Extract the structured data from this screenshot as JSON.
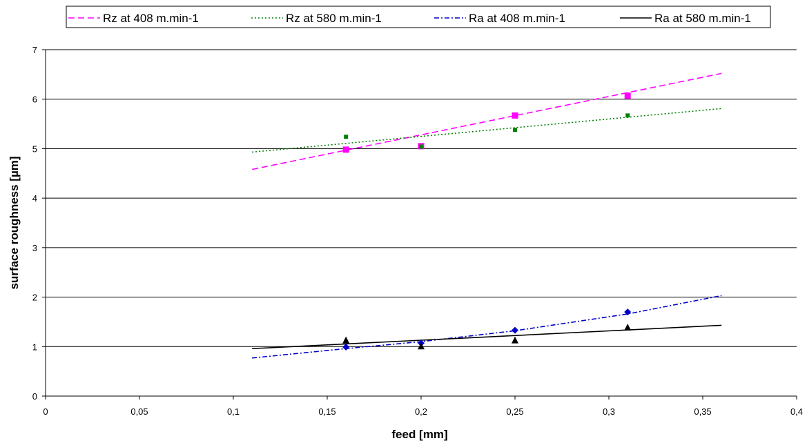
{
  "chart_data": {
    "type": "scatter",
    "xlabel": "feed [mm]",
    "ylabel": "surface roughness [µm]",
    "xlim": [
      0,
      0.4
    ],
    "ylim": [
      0,
      7
    ],
    "x_ticks": [
      "0",
      "0,05",
      "0,1",
      "0,15",
      "0,2",
      "0,25",
      "0,3",
      "0,35",
      "0,4"
    ],
    "y_ticks": [
      "0",
      "1",
      "2",
      "3",
      "4",
      "5",
      "6",
      "7"
    ],
    "grid": "horizontal major gridlines",
    "legend_position": "top",
    "series": [
      {
        "name": "Rz at 408 m.min-1",
        "color": "#ff00ff",
        "marker": "square",
        "line_style": "dashed",
        "x": [
          0.16,
          0.2,
          0.25,
          0.31
        ],
        "y": [
          4.98,
          5.05,
          5.67,
          6.07
        ],
        "trend": {
          "x": [
            0.11,
            0.36
          ],
          "y": [
            4.58,
            6.52
          ]
        }
      },
      {
        "name": "Rz at 580 m.min-1",
        "color": "#008000",
        "marker": "small-square",
        "line_style": "dotted",
        "x": [
          0.16,
          0.2,
          0.25,
          0.31
        ],
        "y": [
          5.24,
          5.04,
          5.38,
          5.67
        ],
        "trend": {
          "x": [
            0.11,
            0.36
          ],
          "y": [
            4.93,
            5.81
          ]
        }
      },
      {
        "name": "Ra at 408 m.min-1",
        "color": "#0000cc",
        "marker": "diamond",
        "line_style": "dash-dot",
        "x": [
          0.16,
          0.2,
          0.25,
          0.31
        ],
        "y": [
          0.99,
          1.07,
          1.33,
          1.7
        ],
        "trend": {
          "x": [
            0.11,
            0.16,
            0.2,
            0.25,
            0.31,
            0.36
          ],
          "y": [
            0.77,
            0.96,
            1.1,
            1.32,
            1.66,
            2.03
          ]
        }
      },
      {
        "name": "Ra at 580 m.min-1",
        "color": "#000000",
        "marker": "triangle",
        "line_style": "solid",
        "x": [
          0.16,
          0.2,
          0.25,
          0.31
        ],
        "y": [
          1.12,
          1.0,
          1.12,
          1.38
        ],
        "trend": {
          "x": [
            0.11,
            0.36
          ],
          "y": [
            0.96,
            1.43
          ]
        }
      }
    ]
  }
}
